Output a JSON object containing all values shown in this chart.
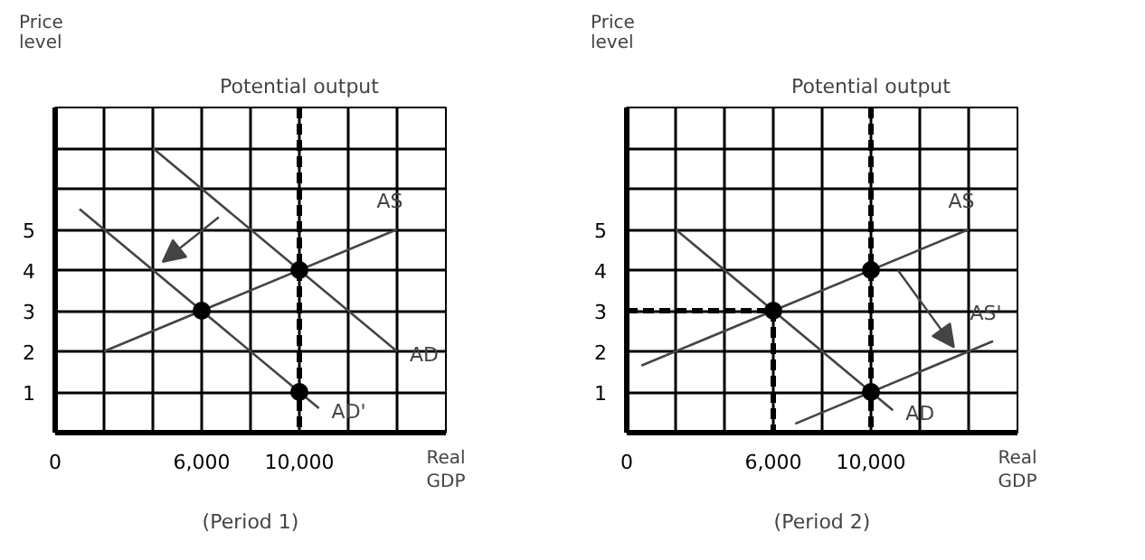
{
  "chart_data": [
    {
      "type": "line",
      "subtitle": "(Period 1)",
      "xlabel": "Real GDP",
      "ylabel": "Price level",
      "xlim": [
        0,
        16000
      ],
      "ylim": [
        0,
        8
      ],
      "xticks": [
        0,
        {
          "value": 2000,
          "label": null
        },
        {
          "value": 4000,
          "label": null
        },
        {
          "value": 6000,
          "label": "6,000"
        },
        {
          "value": 8000,
          "label": null
        },
        {
          "value": 10000,
          "label": "10,000"
        },
        {
          "value": 12000,
          "label": null
        },
        {
          "value": 14000,
          "label": null
        },
        {
          "value": 16000,
          "label": null
        }
      ],
      "yticks": [
        {
          "value": 0,
          "label": null
        },
        1,
        2,
        3,
        4,
        5,
        {
          "value": 6,
          "label": null
        },
        {
          "value": 7,
          "label": null
        },
        {
          "value": 8,
          "label": null
        }
      ],
      "grid": true,
      "ref_lines": [
        {
          "axis": "x",
          "value": 10000,
          "label": "Potential output",
          "color": "#000000",
          "line_style": "dashed"
        }
      ],
      "series": [
        {
          "name": "AS",
          "color": "#444444",
          "x": [
            2000,
            14000
          ],
          "values": [
            2,
            5
          ]
        },
        {
          "name": "AD",
          "color": "#444444",
          "x": [
            4000,
            14000
          ],
          "values": [
            7,
            2
          ]
        },
        {
          "name": "AD'",
          "color": "#444444",
          "x": [
            1000,
            10800
          ],
          "values": [
            5.5,
            0.6
          ]
        },
        {
          "type": "scatter",
          "color": "#000000",
          "x": [
            10000,
            6000,
            10000
          ],
          "values": [
            4,
            3,
            1
          ],
          "marker": "circle"
        }
      ]
    },
    {
      "type": "line",
      "subtitle": "(Period 2)",
      "xlabel": "Real GDP",
      "ylabel": "Price level",
      "xlim": [
        0,
        16000
      ],
      "ylim": [
        0,
        8
      ],
      "xticks": [
        0,
        {
          "value": 2000,
          "label": null
        },
        {
          "value": 4000,
          "label": null
        },
        {
          "value": 6000,
          "label": "6,000"
        },
        {
          "value": 8000,
          "label": null
        },
        {
          "value": 10000,
          "label": "10,000"
        },
        {
          "value": 12000,
          "label": null
        },
        {
          "value": 14000,
          "label": null
        },
        {
          "value": 16000,
          "label": null
        }
      ],
      "yticks": [
        {
          "value": 0,
          "label": null
        },
        1,
        2,
        3,
        4,
        5,
        {
          "value": 6,
          "label": null
        },
        {
          "value": 7,
          "label": null
        },
        {
          "value": 8,
          "label": null
        }
      ],
      "grid": true,
      "ref_lines": [
        {
          "axis": "x",
          "value": 10000,
          "label": "Potential output",
          "color": "#000000",
          "line_style": "dashed"
        }
      ],
      "series": [
        {
          "name": "AS",
          "color": "#444444",
          "x": [
            600,
            14000
          ],
          "values": [
            1.65,
            5
          ]
        },
        {
          "name": "AD",
          "color": "#444444",
          "x": [
            2000,
            10900
          ],
          "values": [
            5,
            0.55
          ]
        },
        {
          "name": "AS'",
          "color": "#444444",
          "x": [
            6900,
            15000
          ],
          "values": [
            0.22,
            2.25
          ]
        },
        {
          "color": "#000000",
          "x": [
            0,
            6000,
            6000
          ],
          "values": [
            3,
            3,
            0
          ],
          "line_style": "dashed"
        },
        {
          "type": "scatter",
          "color": "#000000",
          "x": [
            10000,
            6000,
            10000
          ],
          "values": [
            4,
            3,
            1
          ],
          "marker": "circle"
        }
      ]
    }
  ]
}
